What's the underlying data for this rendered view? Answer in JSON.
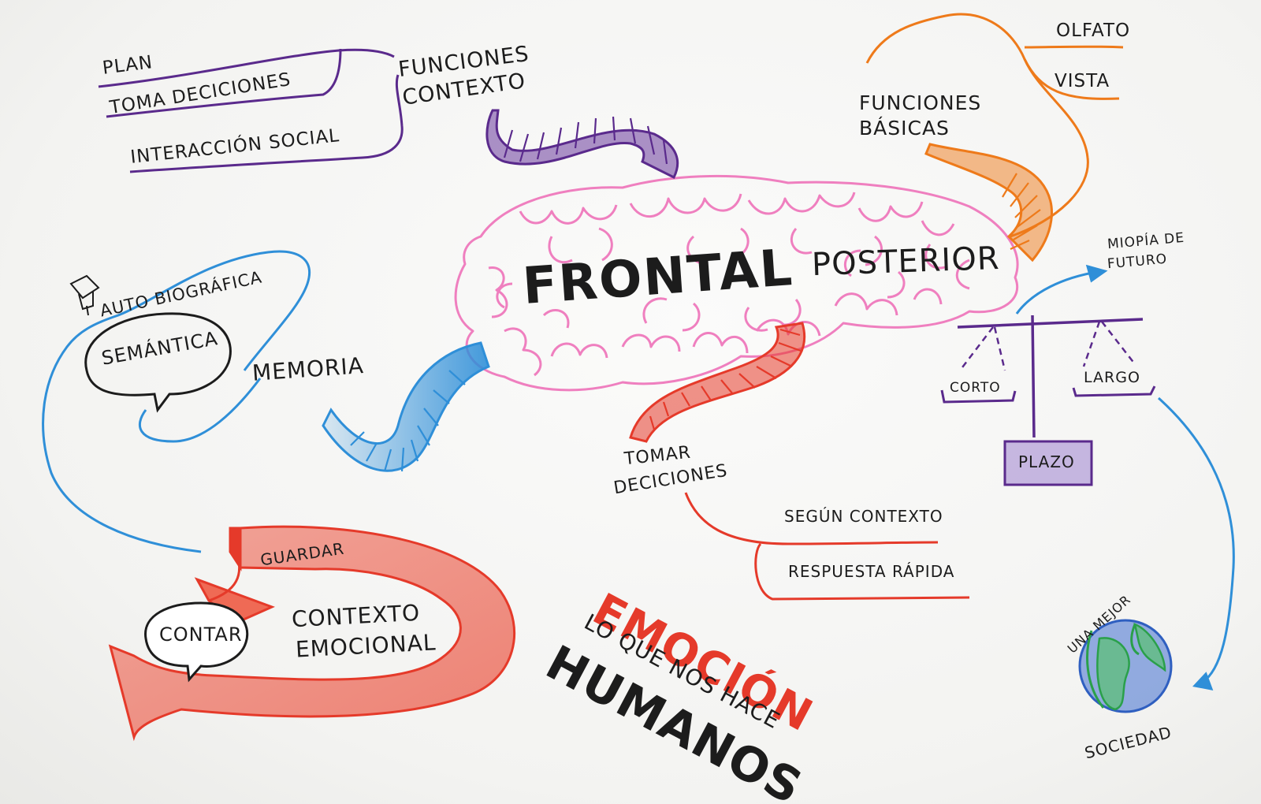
{
  "center": {
    "frontal": "FRONTAL",
    "posterior": "POSTERIOR"
  },
  "functions_context": {
    "title_line1": "FUNCIONES",
    "title_line2": "CONTEXTO",
    "items": [
      "PLAN",
      "TOMA DECICIONES",
      "INTERACCIÓN SOCIAL"
    ]
  },
  "basic_functions": {
    "title_line1": "FUNCIONES",
    "title_line2": "BÁSICAS",
    "items": [
      "OLFATO",
      "VISTA"
    ]
  },
  "memory": {
    "title": "MEMORIA",
    "auto": "AUTO BIOGRÁFICA",
    "semantic": "SEMÁNTICA"
  },
  "emotion_loop": {
    "save": "GUARDAR",
    "tell": "CONTAR",
    "context_line1": "CONTEXTO",
    "context_line2": "EMOCIONAL"
  },
  "decisions": {
    "title_line1": "TOMAR",
    "title_line2": "DECICIONES",
    "items": [
      "SEGÚN CONTEXTO",
      "RESPUESTA RÁPIDA"
    ]
  },
  "emotion": {
    "title": "EMOCIÓN",
    "line1": "LO QUE NOS HACE",
    "line2": "HUMANOS"
  },
  "scale": {
    "short": "CORTO",
    "long": "LARGO",
    "term": "PLAZO",
    "myopia_line1": "MIOPÍA DE",
    "myopia_line2": "FUTURO"
  },
  "society": {
    "top": "UNA MEJOR",
    "bottom": "SOCIEDAD"
  },
  "colors": {
    "ink": "#1c1c1c",
    "brain": "#ef7fbf",
    "purple": "#5a2a8c",
    "orange": "#ee7a1a",
    "blue": "#2f8fd8",
    "red": "#e53a2a",
    "green": "#2aa04a"
  }
}
